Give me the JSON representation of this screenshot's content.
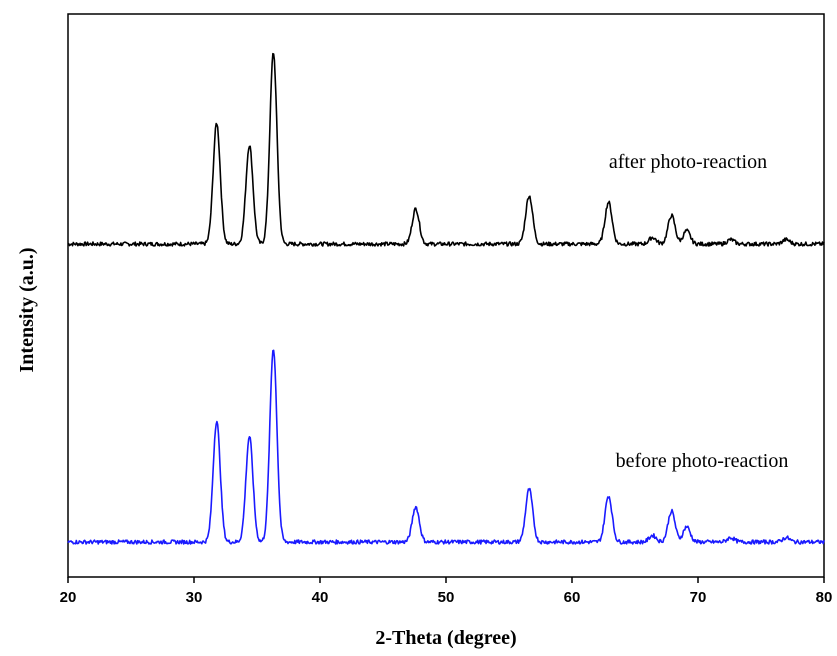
{
  "chart_data": {
    "type": "line",
    "xlabel": "2-Theta (degree)",
    "ylabel": "Intensity (a.u.)",
    "xlim": [
      20,
      80
    ],
    "xticks": [
      "20",
      "30",
      "40",
      "50",
      "60",
      "70",
      "80"
    ],
    "yticks_visible": false,
    "grid": false,
    "legend": "none",
    "series": [
      {
        "name": "after photo-reaction",
        "color": "#000000",
        "baseline": 0.0,
        "offset": 1.0,
        "peaks": [
          {
            "x": 31.8,
            "height": 0.55
          },
          {
            "x": 34.4,
            "height": 0.45
          },
          {
            "x": 36.3,
            "height": 0.87
          },
          {
            "x": 47.6,
            "height": 0.16
          },
          {
            "x": 56.6,
            "height": 0.22
          },
          {
            "x": 62.9,
            "height": 0.19
          },
          {
            "x": 66.4,
            "height": 0.03
          },
          {
            "x": 67.9,
            "height": 0.13
          },
          {
            "x": 69.1,
            "height": 0.06
          },
          {
            "x": 72.6,
            "height": 0.02
          },
          {
            "x": 77.0,
            "height": 0.02
          }
        ]
      },
      {
        "name": "before photo-reaction",
        "color": "#1a1aff",
        "baseline": 0.0,
        "offset": 0.0,
        "peaks": [
          {
            "x": 31.8,
            "height": 0.55
          },
          {
            "x": 34.4,
            "height": 0.48
          },
          {
            "x": 36.3,
            "height": 0.88
          },
          {
            "x": 47.6,
            "height": 0.16
          },
          {
            "x": 56.6,
            "height": 0.24
          },
          {
            "x": 62.9,
            "height": 0.21
          },
          {
            "x": 66.4,
            "height": 0.03
          },
          {
            "x": 67.9,
            "height": 0.14
          },
          {
            "x": 69.1,
            "height": 0.07
          },
          {
            "x": 72.6,
            "height": 0.02
          },
          {
            "x": 77.0,
            "height": 0.02
          }
        ]
      }
    ]
  }
}
